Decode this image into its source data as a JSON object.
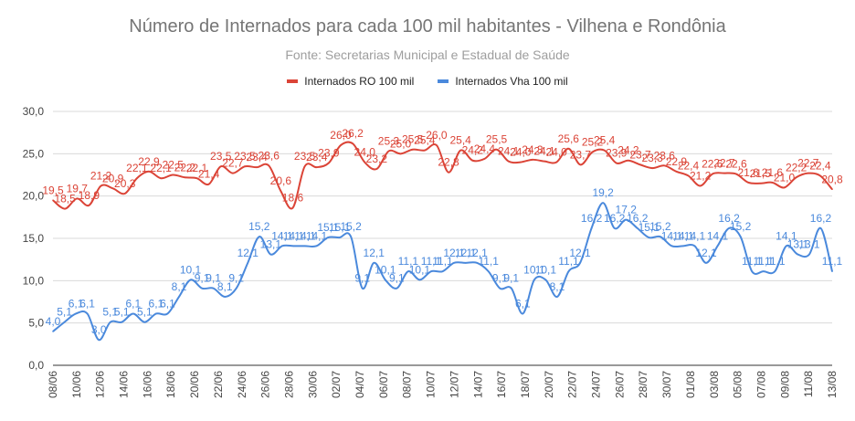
{
  "chart_data": {
    "type": "line",
    "title": "Número de Internados para cada 100 mil habitantes - Vilhena e Rondônia",
    "subtitle": "Fonte: Secretarias Municipal e Estadual de Saúde",
    "xlabel": "",
    "ylabel": "",
    "ylim": [
      0,
      30
    ],
    "yticks": [
      "0,0",
      "5,0",
      "10,0",
      "15,0",
      "20,0",
      "25,0",
      "30,0"
    ],
    "grid": true,
    "legend_position": "top",
    "x_tick_labels": [
      "08/06",
      "10/06",
      "12/06",
      "14/06",
      "16/06",
      "18/06",
      "20/06",
      "22/06",
      "24/06",
      "26/06",
      "28/06",
      "30/06",
      "02/07",
      "04/07",
      "06/07",
      "08/07",
      "10/07",
      "12/07",
      "14/07",
      "16/07",
      "18/07",
      "20/07",
      "22/07",
      "24/07",
      "26/07",
      "28/07",
      "30/07",
      "01/08",
      "03/08",
      "05/08",
      "07/08",
      "09/08",
      "11/08",
      "13/08"
    ],
    "series": [
      {
        "name": "Internados RO 100 mil",
        "color": "#db4437",
        "values": [
          19.5,
          18.5,
          19.7,
          18.9,
          21.2,
          20.9,
          20.3,
          22.1,
          22.9,
          22.1,
          22.5,
          22.2,
          22.1,
          21.4,
          23.5,
          22.7,
          23.5,
          23.4,
          23.6,
          20.6,
          18.6,
          23.5,
          23.4,
          23.9,
          26.0,
          26.2,
          24.0,
          23.2,
          25.3,
          25.0,
          25.5,
          25.4,
          26.0,
          22.8,
          25.4,
          24.2,
          24.4,
          25.5,
          24.1,
          24.0,
          24.3,
          24.1,
          24.0,
          25.6,
          23.7,
          25.2,
          25.4,
          23.9,
          24.2,
          23.7,
          23.3,
          23.6,
          22.9,
          22.4,
          21.2,
          22.6,
          22.7,
          22.6,
          21.6,
          21.5,
          21.6,
          21.0,
          22.2,
          22.7,
          22.4,
          20.8
        ],
        "data_labels": [
          "19,5",
          "18,5",
          "19,7",
          "18,9",
          "21,2",
          "20,9",
          "20,3",
          "22,1",
          "22,9",
          "22,1",
          "22,5",
          "22,2",
          "22,1",
          "21,4",
          "23,5",
          "22,7",
          "23,5",
          "23,4",
          "23,6",
          "20,6",
          "18,6",
          "23,5",
          "23,4",
          "23,9",
          "26,0",
          "26,2",
          "24,0",
          "23,2",
          "25,3",
          "25,0",
          "25,5",
          "25,4",
          "26,0",
          "22,8",
          "25,4",
          "24,2",
          "24,4",
          "25,5",
          "24,1",
          "24,0",
          "24,3",
          "24,1",
          "24,0",
          "25,6",
          "23,7",
          "25,2",
          "25,4",
          "23,9",
          "24,2",
          "23,7",
          "23,3",
          "23,6",
          "22,9",
          "22,4",
          "21,2",
          "22,6",
          "22,7",
          "22,6",
          "21,6",
          "21,5",
          "21,6",
          "21,0",
          "22,2",
          "22,7",
          "22,4",
          "20,8"
        ]
      },
      {
        "name": "Internados Vha 100 mil",
        "color": "#4a89dc",
        "values": [
          4.0,
          5.1,
          6.1,
          6.1,
          3.0,
          5.1,
          5.1,
          6.1,
          5.1,
          6.1,
          6.1,
          8.1,
          10.1,
          9.1,
          9.1,
          8.1,
          9.1,
          12.1,
          15.2,
          13.1,
          14.1,
          14.1,
          14.1,
          14.1,
          15.1,
          15.1,
          15.2,
          9.1,
          12.1,
          10.1,
          9.1,
          11.1,
          10.1,
          11.1,
          11.1,
          12.1,
          12.1,
          12.1,
          11.1,
          9.1,
          9.1,
          6.1,
          10.1,
          10.1,
          8.1,
          11.1,
          12.1,
          16.2,
          19.2,
          16.2,
          17.2,
          16.2,
          15.1,
          15.2,
          14.1,
          14.1,
          14.1,
          12.1,
          14.1,
          16.2,
          15.2,
          11.1,
          11.1,
          11.1,
          14.1,
          13.1,
          13.1,
          16.2,
          11.1
        ],
        "data_labels": [
          "4,0",
          "5,1",
          "6,1",
          "6,1",
          "3,0",
          "5,1",
          "5,1",
          "6,1",
          "5,1",
          "6,1",
          "6,1",
          "8,1",
          "10,1",
          "9,1",
          "9,1",
          "8,1",
          "9,1",
          "12,1",
          "15,2",
          "13,1",
          "14,1",
          "14,1",
          "14,1",
          "14,1",
          "15,1",
          "15,1",
          "15,2",
          "9,1",
          "12,1",
          "10,1",
          "9,1",
          "11,1",
          "10,1",
          "11,1",
          "11,1",
          "12,1",
          "12,1",
          "12,1",
          "11,1",
          "9,1",
          "9,1",
          "6,1",
          "10,1",
          "10,1",
          "8,1",
          "11,1",
          "12,1",
          "16,2",
          "19,2",
          "16,2",
          "17,2",
          "16,2",
          "15,1",
          "15,2",
          "14,1",
          "14,1",
          "14,1",
          "12,1",
          "14,1",
          "16,2",
          "15,2",
          "11,1",
          "11,1",
          "11,1",
          "14,1",
          "13,1",
          "13,1",
          "16,2",
          "11,1"
        ]
      }
    ]
  }
}
